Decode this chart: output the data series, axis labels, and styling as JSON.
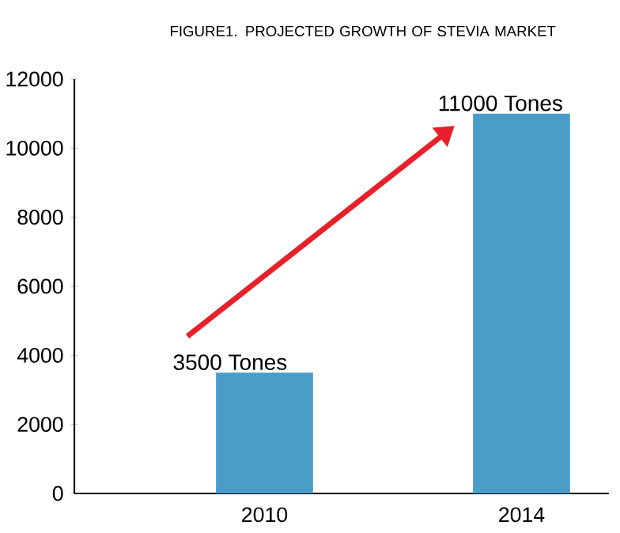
{
  "chart_data": {
    "type": "bar",
    "title": "FIGURE1. PROJECTED GROWTH OF STEVIA MARKET",
    "categories": [
      "2010",
      "2014"
    ],
    "values": [
      3500,
      11000
    ],
    "color": "#4a9cc9",
    "ylim": [
      0,
      12000
    ],
    "yticks": [
      0,
      2000,
      4000,
      6000,
      8000,
      10000,
      12000
    ],
    "annotations": [
      {
        "text": "3500 Tones",
        "x": "2010",
        "y": 3500
      },
      {
        "text": "11000 Tones",
        "x": "2014",
        "y": 11000
      }
    ]
  }
}
